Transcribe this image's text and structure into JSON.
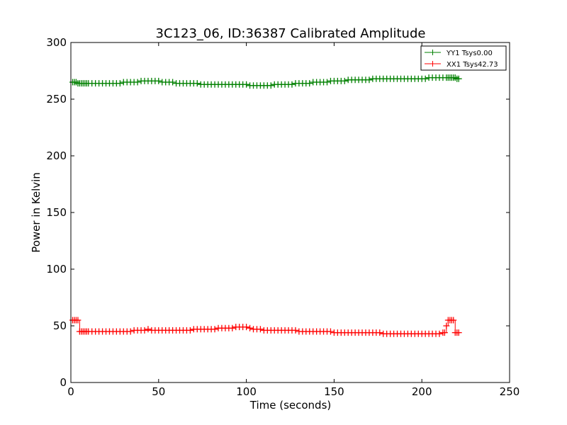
{
  "chart_data": {
    "type": "line",
    "title": "3C123_06, ID:36387 Calibrated Amplitude",
    "xlabel": "Time (seconds)",
    "ylabel": "Power in Kelvin",
    "xlim": [
      0,
      250
    ],
    "ylim": [
      0,
      300
    ],
    "x_ticks": [
      0,
      50,
      100,
      150,
      200,
      250
    ],
    "y_ticks": [
      0,
      50,
      100,
      150,
      200,
      250,
      300
    ],
    "grid": false,
    "legend_position": "top-right",
    "marker": "plus",
    "series": [
      {
        "name": "YY1 Tsys0.00",
        "color": "#008000",
        "x": [
          1,
          2,
          3,
          4,
          5,
          6,
          7,
          8,
          9,
          10,
          12,
          14,
          16,
          18,
          20,
          22,
          24,
          26,
          28,
          30,
          32,
          34,
          36,
          38,
          40,
          42,
          44,
          46,
          48,
          50,
          52,
          54,
          56,
          58,
          60,
          62,
          64,
          66,
          68,
          70,
          72,
          74,
          76,
          78,
          80,
          82,
          84,
          86,
          88,
          90,
          92,
          94,
          96,
          98,
          100,
          102,
          104,
          106,
          108,
          110,
          112,
          114,
          116,
          118,
          120,
          122,
          124,
          126,
          128,
          130,
          132,
          134,
          136,
          138,
          140,
          142,
          144,
          146,
          148,
          150,
          152,
          154,
          156,
          158,
          160,
          162,
          164,
          166,
          168,
          170,
          172,
          174,
          176,
          178,
          180,
          182,
          184,
          186,
          188,
          190,
          192,
          194,
          196,
          198,
          200,
          202,
          204,
          206,
          208,
          210,
          212,
          214,
          215,
          216,
          217,
          218,
          219,
          220,
          221
        ],
        "values": [
          265,
          265,
          265,
          264,
          264,
          264,
          264,
          264,
          264,
          264,
          264,
          264,
          264,
          264,
          264,
          264,
          264,
          264,
          264,
          265,
          265,
          265,
          265,
          265,
          266,
          266,
          266,
          266,
          266,
          266,
          265,
          265,
          265,
          265,
          264,
          264,
          264,
          264,
          264,
          264,
          264,
          263,
          263,
          263,
          263,
          263,
          263,
          263,
          263,
          263,
          263,
          263,
          263,
          263,
          263,
          262,
          262,
          262,
          262,
          262,
          262,
          262,
          263,
          263,
          263,
          263,
          263,
          263,
          264,
          264,
          264,
          264,
          264,
          265,
          265,
          265,
          265,
          265,
          266,
          266,
          266,
          266,
          266,
          267,
          267,
          267,
          267,
          267,
          267,
          267,
          268,
          268,
          268,
          268,
          268,
          268,
          268,
          268,
          268,
          268,
          268,
          268,
          268,
          268,
          268,
          268,
          269,
          269,
          269,
          269,
          269,
          269,
          269,
          269,
          269,
          269,
          269,
          268,
          268
        ]
      },
      {
        "name": "XX1 Tsys42.73",
        "color": "#ff0000",
        "x": [
          1,
          2,
          3,
          4,
          5,
          6,
          7,
          8,
          9,
          10,
          12,
          14,
          16,
          18,
          20,
          22,
          24,
          26,
          28,
          30,
          32,
          34,
          36,
          38,
          40,
          42,
          44,
          46,
          48,
          50,
          52,
          54,
          56,
          58,
          60,
          62,
          64,
          66,
          68,
          70,
          72,
          74,
          76,
          78,
          80,
          82,
          84,
          86,
          88,
          90,
          92,
          94,
          96,
          98,
          100,
          102,
          104,
          106,
          108,
          110,
          112,
          114,
          116,
          118,
          120,
          122,
          124,
          126,
          128,
          130,
          132,
          134,
          136,
          138,
          140,
          142,
          144,
          146,
          148,
          150,
          152,
          154,
          156,
          158,
          160,
          162,
          164,
          166,
          168,
          170,
          172,
          174,
          176,
          178,
          180,
          182,
          184,
          186,
          188,
          190,
          192,
          194,
          196,
          198,
          200,
          202,
          204,
          206,
          208,
          210,
          212,
          213,
          214,
          215,
          216,
          217,
          218,
          219,
          220,
          221
        ],
        "values": [
          55,
          55,
          55,
          55,
          45,
          45,
          45,
          45,
          45,
          45,
          45,
          45,
          45,
          45,
          45,
          45,
          45,
          45,
          45,
          45,
          45,
          45,
          46,
          46,
          46,
          46,
          47,
          46,
          46,
          46,
          46,
          46,
          46,
          46,
          46,
          46,
          46,
          46,
          46,
          47,
          47,
          47,
          47,
          47,
          47,
          47,
          48,
          48,
          48,
          48,
          48,
          49,
          49,
          49,
          49,
          48,
          47,
          47,
          47,
          46,
          46,
          46,
          46,
          46,
          46,
          46,
          46,
          46,
          46,
          45,
          45,
          45,
          45,
          45,
          45,
          45,
          45,
          45,
          45,
          44,
          44,
          44,
          44,
          44,
          44,
          44,
          44,
          44,
          44,
          44,
          44,
          44,
          44,
          43,
          43,
          43,
          43,
          43,
          43,
          43,
          43,
          43,
          43,
          43,
          43,
          43,
          43,
          43,
          43,
          43,
          44,
          44,
          50,
          55,
          55,
          55,
          55,
          44,
          44,
          44
        ]
      }
    ]
  }
}
